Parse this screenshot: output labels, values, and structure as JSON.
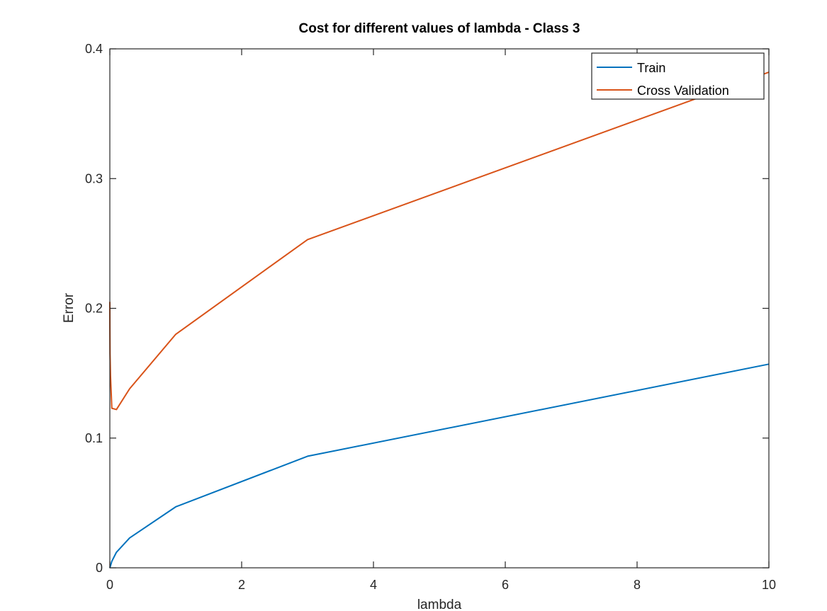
{
  "chart_data": {
    "type": "line",
    "title": "Cost for different values of lambda - Class 3",
    "xlabel": "lambda",
    "ylabel": "Error",
    "xlim": [
      0,
      10
    ],
    "ylim": [
      0,
      0.4
    ],
    "x_ticks": [
      0,
      2,
      4,
      6,
      8,
      10
    ],
    "y_ticks": [
      0,
      0.1,
      0.2,
      0.3,
      0.4
    ],
    "x_tick_labels": [
      "0",
      "2",
      "4",
      "6",
      "8",
      "10"
    ],
    "y_tick_labels": [
      "0",
      "0.1",
      "0.2",
      "0.3",
      "0.4"
    ],
    "grid": false,
    "legend_position": "top-right",
    "series": [
      {
        "name": "Train",
        "color": "#0072BD",
        "x": [
          0,
          0.001,
          0.003,
          0.01,
          0.03,
          0.1,
          0.3,
          1,
          3,
          10
        ],
        "y": [
          0.0,
          0.0002,
          0.0005,
          0.0015,
          0.005,
          0.012,
          0.023,
          0.047,
          0.086,
          0.157
        ]
      },
      {
        "name": "Cross Validation",
        "color": "#D95319",
        "x": [
          0,
          0.001,
          0.003,
          0.01,
          0.03,
          0.1,
          0.3,
          1,
          3,
          10
        ],
        "y": [
          0.205,
          0.185,
          0.165,
          0.148,
          0.123,
          0.122,
          0.138,
          0.18,
          0.253,
          0.382
        ]
      }
    ]
  }
}
